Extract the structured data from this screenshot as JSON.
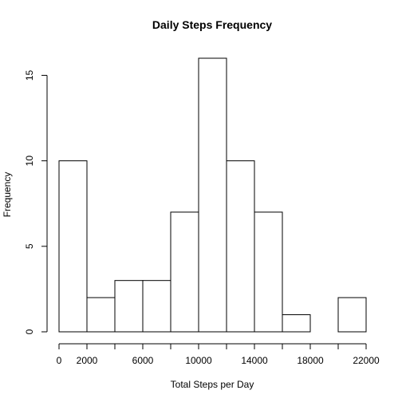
{
  "chart_data": {
    "type": "histogram",
    "title": "Daily Steps Frequency",
    "xlabel": "Total Steps per Day",
    "ylabel": "Frequency",
    "bin_edges": [
      0,
      2000,
      4000,
      6000,
      8000,
      10000,
      12000,
      14000,
      16000,
      18000,
      20000,
      22000
    ],
    "counts": [
      10,
      2,
      3,
      3,
      7,
      16,
      10,
      7,
      1,
      0,
      2
    ],
    "xlim": [
      0,
      22000
    ],
    "ylim": [
      0,
      16
    ],
    "x_ticks": [
      0,
      2000,
      4000,
      6000,
      8000,
      10000,
      12000,
      14000,
      16000,
      18000,
      20000,
      22000
    ],
    "x_tick_labels": [
      "0",
      "2000",
      "",
      "6000",
      "",
      "10000",
      "",
      "14000",
      "",
      "18000",
      "",
      "22000"
    ],
    "y_ticks": [
      0,
      5,
      10,
      15
    ],
    "y_tick_labels": [
      "0",
      "5",
      "10",
      "15"
    ],
    "grid": false,
    "bar_fill": "#ffffff",
    "bar_stroke": "#000000"
  }
}
